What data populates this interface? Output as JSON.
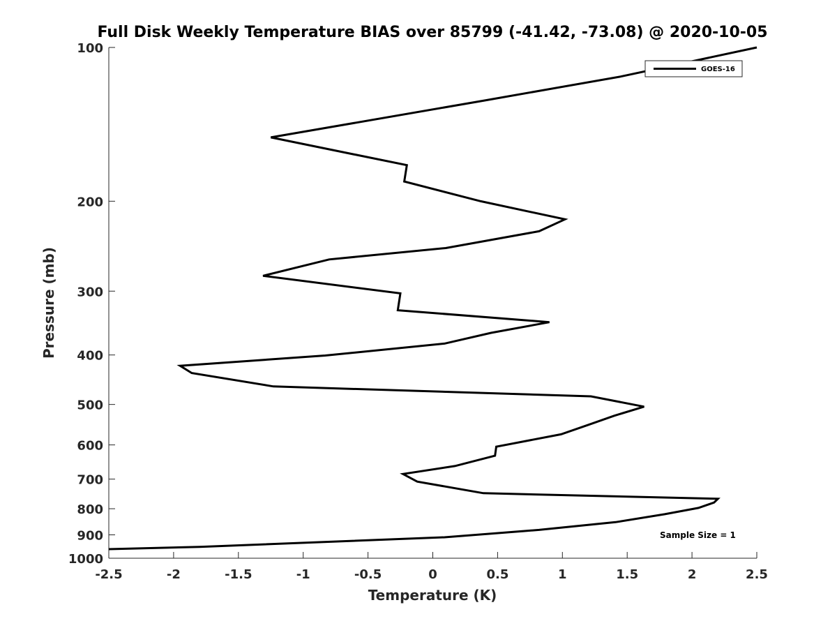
{
  "chart_data": {
    "type": "line",
    "title": "Full Disk Weekly Temperature BIAS over 85799 (-41.42, -73.08) @ 2020-10-05",
    "xlabel": "Temperature (K)",
    "ylabel": "Pressure (mb)",
    "xlim": [
      -2.5,
      2.5
    ],
    "ylim": [
      100,
      1000
    ],
    "y_scale": "log",
    "y_reversed": true,
    "x_ticks": [
      -2.5,
      -2,
      -1.5,
      -1,
      -0.5,
      0,
      0.5,
      1,
      1.5,
      2,
      2.5
    ],
    "x_tick_labels": [
      "-2.5",
      "-2",
      "-1.5",
      "-1",
      "-0.5",
      "0",
      "0.5",
      "1",
      "1.5",
      "2",
      "2.5"
    ],
    "y_ticks": [
      100,
      200,
      300,
      400,
      500,
      600,
      700,
      800,
      900,
      1000
    ],
    "y_tick_labels": [
      "100",
      "200",
      "300",
      "400",
      "500",
      "600",
      "700",
      "800",
      "900",
      "1000"
    ],
    "grid": false,
    "legend_position": "top-right",
    "annotation": "Sample Size = 1",
    "series": [
      {
        "name": "GOES-16",
        "color": "#000000",
        "x": [
          2.5,
          1.45,
          0.4,
          -1.25,
          -0.2,
          -0.22,
          0.37,
          1.02,
          0.82,
          0.1,
          -0.8,
          -1.31,
          -0.25,
          -0.27,
          0.9,
          0.45,
          0.09,
          -0.83,
          -1.95,
          -1.86,
          -1.23,
          1.22,
          1.63,
          1.4,
          1.22,
          0.99,
          0.49,
          0.48,
          0.17,
          -0.23,
          -0.12,
          0.39,
          2.2,
          2.17,
          2.05,
          1.79,
          1.41,
          0.82,
          0.09,
          -1.8,
          -2.5
        ],
        "y": [
          100,
          114,
          127,
          150,
          170,
          183,
          200,
          217,
          229,
          247,
          260,
          280,
          303,
          327,
          345,
          362,
          380,
          401,
          420,
          434,
          461,
          482,
          505,
          526,
          546,
          572,
          605,
          630,
          660,
          684,
          708,
          746,
          765,
          778,
          797,
          820,
          850,
          880,
          910,
          950,
          960
        ]
      }
    ]
  }
}
